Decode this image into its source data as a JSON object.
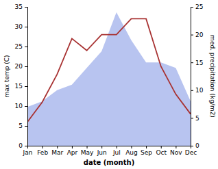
{
  "chart_data": {
    "type": "line",
    "categories": [
      "Jan",
      "Feb",
      "Mar",
      "Apr",
      "May",
      "Jun",
      "Jul",
      "Aug",
      "Sep",
      "Oct",
      "Nov",
      "Dec"
    ],
    "xlabel": "date (month)",
    "ylabel": "max temp (C)",
    "y2label": "med. precipitation (kg/m2)",
    "series": [
      {
        "type": "area",
        "axis": "y2",
        "color": "#b8c4f0",
        "values": [
          7,
          8,
          10,
          11,
          14,
          17,
          24,
          19,
          15,
          15,
          14,
          8
        ]
      },
      {
        "type": "line",
        "color": "#a83232",
        "values": [
          6,
          11,
          18,
          27,
          24,
          28,
          28,
          32,
          32,
          20,
          13,
          8
        ]
      }
    ],
    "ylim": [
      0,
      35
    ],
    "yticks": [
      0,
      5,
      10,
      15,
      20,
      25,
      30,
      35
    ],
    "y2lim": [
      0,
      25
    ],
    "y2ticks": [
      0,
      5,
      10,
      15,
      20,
      25
    ],
    "grid": false
  }
}
